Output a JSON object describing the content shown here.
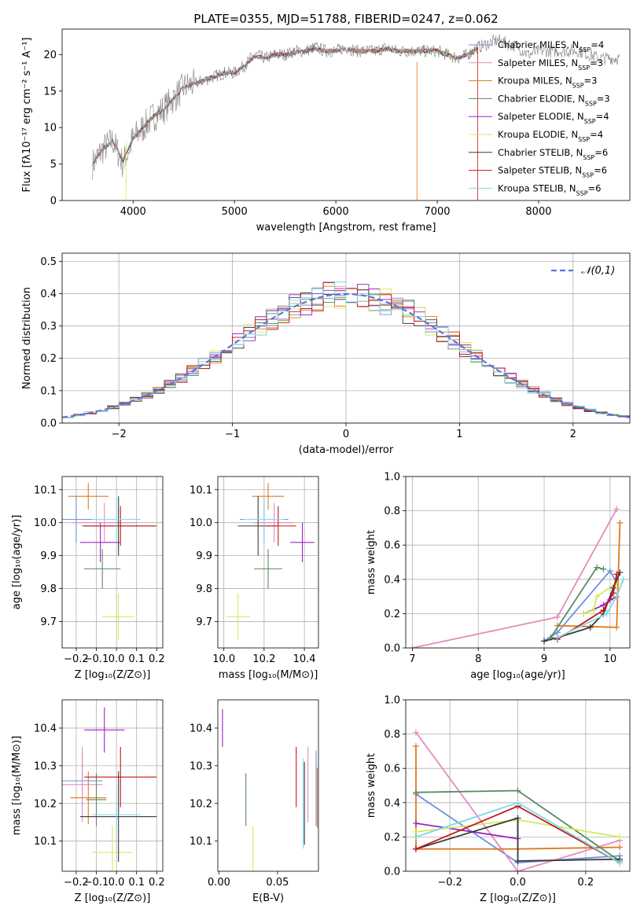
{
  "figure": {
    "title": "PLATE=0355, MJD=51788, FIBERID=0247, z=0.062"
  },
  "series_styles": [
    {
      "name": "Chabrier MILES",
      "color": "#6f8fe0"
    },
    {
      "name": "Salpeter MILES",
      "color": "#e58bbd"
    },
    {
      "name": "Kroupa MILES",
      "color": "#e07a20"
    },
    {
      "name": "Chabrier ELODIE",
      "color": "#5a8a62"
    },
    {
      "name": "Salpeter ELODIE",
      "color": "#a020c8"
    },
    {
      "name": "Kroupa ELODIE",
      "color": "#d4ea5a"
    },
    {
      "name": "Chabrier STELIB",
      "color": "#3a3a3a"
    },
    {
      "name": "Salpeter STELIB",
      "color": "#c01818"
    },
    {
      "name": "Kroupa STELIB",
      "color": "#7fd9e6"
    }
  ],
  "chart_data": [
    {
      "id": "spectrum",
      "type": "line",
      "xlabel": "wavelength [Angstrom, rest frame]",
      "ylabel": "Flux [fλ10⁻¹⁷ erg cm⁻² s⁻¹ A⁻¹]",
      "xlim": [
        3300,
        8900
      ],
      "ylim": [
        0,
        23.5
      ],
      "xticks": [
        4000,
        5000,
        6000,
        7000,
        8000
      ],
      "yticks": [
        0,
        5,
        10,
        15,
        20
      ],
      "grid": false,
      "legend_position": "right",
      "legend": [
        "Chabrier MILES, N_SSP=4",
        "Salpeter MILES, N_SSP=3",
        "Kroupa MILES, N_SSP=3",
        "Chabrier ELODIE, N_SSP=3",
        "Salpeter ELODIE, N_SSP=4",
        "Kroupa ELODIE, N_SSP=4",
        "Chabrier STELIB, N_SSP=6",
        "Salpeter STELIB, N_SSP=6",
        "Kroupa STELIB, N_SSP=6"
      ],
      "observed_spectrum": {
        "x": [
          3600,
          3700,
          3800,
          3900,
          4000,
          4100,
          4200,
          4300,
          4400,
          4500,
          4600,
          4700,
          4800,
          4900,
          5000,
          5100,
          5200,
          5300,
          5400,
          5500,
          5600,
          5700,
          5800,
          5900,
          6000,
          6100,
          6200,
          6300,
          6400,
          6500,
          6600,
          6700,
          6800,
          6900,
          7000,
          7100,
          7200,
          7300,
          7400,
          7500,
          7600,
          7700,
          7800,
          7900,
          8000,
          8100,
          8200,
          8300,
          8400,
          8500,
          8600,
          8700,
          8800
        ],
        "y": [
          5,
          7,
          8.2,
          5,
          8.5,
          10,
          11.5,
          12.5,
          14,
          15.5,
          16,
          16.5,
          17,
          17.5,
          17.5,
          18.5,
          20,
          19.5,
          20,
          20,
          20.5,
          20.5,
          21,
          20.5,
          20.5,
          21,
          20.5,
          20.5,
          20.5,
          21,
          20.5,
          20.5,
          20.5,
          20.5,
          20.5,
          20,
          19.5,
          20,
          21,
          21.5,
          22,
          21.5,
          21,
          20,
          20.5,
          20.5,
          20.5,
          20.5,
          20.5,
          20,
          19.5,
          19.5,
          19.5
        ]
      },
      "model_spectrum": {
        "x": [
          3600,
          3700,
          3800,
          3900,
          4000,
          4100,
          4200,
          4300,
          4400,
          4500,
          4600,
          4700,
          4800,
          4900,
          5000,
          5100,
          5200,
          5300,
          5400,
          5500,
          5600,
          5700,
          5800,
          5900,
          6000,
          6100,
          6200,
          6300,
          6400,
          6500,
          6600,
          6700,
          6800,
          6900,
          7000,
          7100,
          7200,
          7300,
          7400
        ],
        "y": [
          5,
          7,
          8.2,
          5.5,
          8.5,
          10,
          11.5,
          12.5,
          14,
          15.5,
          16,
          16.5,
          17,
          17.5,
          17.5,
          18.5,
          19.8,
          19.5,
          20,
          20,
          20.3,
          20.5,
          20.8,
          20.5,
          20.5,
          20.8,
          20.5,
          20.5,
          20.5,
          20.8,
          20.5,
          20.5,
          20.5,
          20.5,
          20.5,
          20,
          19.5,
          20,
          20.8
        ]
      }
    },
    {
      "id": "residual_histogram",
      "type": "histogram",
      "xlabel": "(data-model)/error",
      "ylabel": "Normed distribution",
      "xlim": [
        -2.5,
        2.5
      ],
      "ylim": [
        0,
        0.525
      ],
      "xticks": [
        -2,
        -1,
        0,
        1,
        2
      ],
      "yticks": [
        0.0,
        0.1,
        0.2,
        0.3,
        0.4,
        0.5
      ],
      "grid": true,
      "legend": [
        "𝒩(0,1)"
      ],
      "legend_position": "top-right",
      "bin_width": 0.1,
      "bins_start": -2.5,
      "reference_curve": "normal(0,1)"
    },
    {
      "id": "age_vs_Z",
      "type": "scatter-errorbar",
      "xlabel": "Z [log₁₀(Z/Z⊙)]",
      "ylabel": "age  [log₁₀(age/yr)]",
      "xlim": [
        -0.27,
        0.23
      ],
      "ylim": [
        9.62,
        10.14
      ],
      "xticks": [
        -0.2,
        -0.1,
        0.0,
        0.1,
        0.2
      ],
      "yticks": [
        9.7,
        9.8,
        9.9,
        10.0,
        10.1
      ],
      "grid": true,
      "points": [
        {
          "series": 0,
          "x": -0.2,
          "xerr": 0.08,
          "y": 10.01,
          "yerr": 0.07
        },
        {
          "series": 1,
          "x": -0.06,
          "xerr": 0.16,
          "y": 10.0,
          "yerr": 0.06
        },
        {
          "series": 2,
          "x": -0.14,
          "xerr": 0.1,
          "y": 10.08,
          "yerr": 0.04
        },
        {
          "series": 3,
          "x": -0.07,
          "xerr": 0.09,
          "y": 9.86,
          "yerr": 0.06
        },
        {
          "series": 4,
          "x": -0.08,
          "xerr": 0.1,
          "y": 9.94,
          "yerr": 0.06
        },
        {
          "series": 5,
          "x": 0.01,
          "xerr": 0.08,
          "y": 9.715,
          "yerr": 0.07
        },
        {
          "series": 6,
          "x": 0.01,
          "xerr": 0.18,
          "y": 9.99,
          "yerr": 0.09
        },
        {
          "series": 7,
          "x": 0.02,
          "xerr": 0.18,
          "y": 9.99,
          "yerr": 0.06
        },
        {
          "series": 8,
          "x": 0.0,
          "xerr": 0.12,
          "y": 10.01,
          "yerr": 0.07
        }
      ]
    },
    {
      "id": "age_vs_mass",
      "type": "scatter-errorbar",
      "xlabel": "mass [log₁₀(M/M⊙)]",
      "ylabel": "",
      "xlim": [
        9.97,
        10.47
      ],
      "ylim": [
        9.62,
        10.14
      ],
      "xticks": [
        10.0,
        10.2,
        10.4
      ],
      "yticks": [
        9.7,
        9.8,
        9.9,
        10.0,
        10.1
      ],
      "grid": true,
      "points": [
        {
          "series": 0,
          "x": 10.2,
          "xerr": 0.12,
          "y": 10.01,
          "yerr": 0.07
        },
        {
          "series": 1,
          "x": 10.25,
          "xerr": 0.1,
          "y": 10.0,
          "yerr": 0.06
        },
        {
          "series": 2,
          "x": 10.22,
          "xerr": 0.08,
          "y": 10.08,
          "yerr": 0.04
        },
        {
          "series": 3,
          "x": 10.22,
          "xerr": 0.07,
          "y": 9.86,
          "yerr": 0.06
        },
        {
          "series": 4,
          "x": 10.39,
          "xerr": 0.06,
          "y": 9.94,
          "yerr": 0.06
        },
        {
          "series": 5,
          "x": 10.07,
          "xerr": 0.06,
          "y": 9.715,
          "yerr": 0.07
        },
        {
          "series": 6,
          "x": 10.17,
          "xerr": 0.1,
          "y": 9.99,
          "yerr": 0.09
        },
        {
          "series": 7,
          "x": 10.27,
          "xerr": 0.09,
          "y": 9.99,
          "yerr": 0.06
        },
        {
          "series": 8,
          "x": 10.2,
          "xerr": 0.1,
          "y": 10.01,
          "yerr": 0.07
        }
      ]
    },
    {
      "id": "mass_weight_vs_age",
      "type": "line",
      "xlabel": "age  [log₁₀(age/yr)]",
      "ylabel": "mass weight",
      "xlim": [
        6.9,
        10.3
      ],
      "ylim": [
        0,
        1.0
      ],
      "xticks": [
        7,
        8,
        9,
        10
      ],
      "yticks": [
        0.0,
        0.2,
        0.4,
        0.6,
        0.8,
        1.0
      ],
      "grid": true,
      "series": [
        {
          "series": 0,
          "x": [
            9.0,
            9.2,
            10.0,
            10.1
          ],
          "y": [
            0.04,
            0.09,
            0.45,
            0.38
          ]
        },
        {
          "series": 1,
          "x": [
            7.0,
            9.2,
            10.1
          ],
          "y": [
            0.0,
            0.18,
            0.81
          ]
        },
        {
          "series": 2,
          "x": [
            9.2,
            10.1,
            10.15
          ],
          "y": [
            0.13,
            0.12,
            0.73
          ]
        },
        {
          "series": 3,
          "x": [
            9.1,
            9.8,
            9.9
          ],
          "y": [
            0.06,
            0.47,
            0.46
          ]
        },
        {
          "series": 4,
          "x": [
            9.6,
            9.9,
            10.0,
            10.1
          ],
          "y": [
            0.2,
            0.25,
            0.28,
            0.3
          ]
        },
        {
          "series": 5,
          "x": [
            9.6,
            9.75,
            9.8,
            10.1
          ],
          "y": [
            0.2,
            0.22,
            0.3,
            0.38
          ]
        },
        {
          "series": 6,
          "x": [
            9.0,
            9.2,
            9.7,
            9.9,
            10.05,
            10.15
          ],
          "y": [
            0.04,
            0.06,
            0.12,
            0.2,
            0.35,
            0.44
          ]
        },
        {
          "series": 7,
          "x": [
            9.2,
            9.9,
            10.05,
            10.1
          ],
          "y": [
            0.05,
            0.22,
            0.32,
            0.43
          ]
        },
        {
          "series": 8,
          "x": [
            9.2,
            9.95,
            10.1,
            10.2
          ],
          "y": [
            0.06,
            0.2,
            0.3,
            0.4
          ]
        }
      ]
    },
    {
      "id": "mass_vs_Z",
      "type": "scatter-errorbar",
      "xlabel": "Z [log₁₀(Z/Z⊙)]",
      "ylabel": "mass [log₁₀(M/M⊙)]",
      "xlim": [
        -0.27,
        0.23
      ],
      "ylim": [
        10.02,
        10.475
      ],
      "xticks": [
        -0.2,
        -0.1,
        0.0,
        0.1,
        0.2
      ],
      "yticks": [
        10.1,
        10.2,
        10.3,
        10.4
      ],
      "grid": true,
      "points": [
        {
          "series": 0,
          "x": -0.17,
          "xerr": 0.1,
          "y": 10.26,
          "yerr": 0.07
        },
        {
          "series": 1,
          "x": -0.17,
          "xerr": 0.1,
          "y": 10.25,
          "yerr": 0.1
        },
        {
          "series": 2,
          "x": -0.14,
          "xerr": 0.09,
          "y": 10.215,
          "yerr": 0.07
        },
        {
          "series": 3,
          "x": -0.1,
          "xerr": 0.05,
          "y": 10.21,
          "yerr": 0.07
        },
        {
          "series": 4,
          "x": -0.06,
          "xerr": 0.1,
          "y": 10.395,
          "yerr": 0.06
        },
        {
          "series": 5,
          "x": -0.02,
          "xerr": 0.1,
          "y": 10.07,
          "yerr": 0.07
        },
        {
          "series": 6,
          "x": 0.01,
          "xerr": 0.19,
          "y": 10.165,
          "yerr": 0.12
        },
        {
          "series": 7,
          "x": 0.02,
          "xerr": 0.18,
          "y": 10.27,
          "yerr": 0.08
        },
        {
          "series": 8,
          "x": 0.0,
          "xerr": 0.12,
          "y": 10.17,
          "yerr": 0.06
        }
      ]
    },
    {
      "id": "mass_vs_ebv",
      "type": "errorbar",
      "xlabel": "E(B-V)",
      "ylabel": "",
      "xlim": [
        -0.001,
        0.085
      ],
      "ylim": [
        10.02,
        10.475
      ],
      "xticks": [
        0.0,
        0.05
      ],
      "yticks": [
        10.1,
        10.2,
        10.3,
        10.4
      ],
      "grid": false,
      "points": [
        {
          "series": 0,
          "x": 0.083,
          "y": 10.24,
          "yerr": 0.1
        },
        {
          "series": 1,
          "x": 0.076,
          "y": 10.25,
          "yerr": 0.1
        },
        {
          "series": 2,
          "x": 0.084,
          "y": 10.215,
          "yerr": 0.08
        },
        {
          "series": 3,
          "x": 0.023,
          "y": 10.21,
          "yerr": 0.07
        },
        {
          "series": 4,
          "x": 0.003,
          "y": 10.4,
          "yerr": 0.05
        },
        {
          "series": 5,
          "x": 0.029,
          "y": 10.08,
          "yerr": 0.06
        },
        {
          "series": 6,
          "x": 0.073,
          "y": 10.2,
          "yerr": 0.11
        },
        {
          "series": 7,
          "x": 0.066,
          "y": 10.27,
          "yerr": 0.08
        },
        {
          "series": 8,
          "x": 0.072,
          "y": 10.2,
          "yerr": 0.12
        }
      ]
    },
    {
      "id": "mass_weight_vs_Z",
      "type": "line",
      "xlabel": "Z [log₁₀(Z/Z⊙)]",
      "ylabel": "mass weight",
      "xlim": [
        -0.33,
        0.33
      ],
      "ylim": [
        0,
        1.0
      ],
      "xticks": [
        -0.2,
        0.0,
        0.2
      ],
      "yticks": [
        0.0,
        0.2,
        0.4,
        0.6,
        0.8,
        1.0
      ],
      "grid": true,
      "series": [
        {
          "series": 0,
          "x": [
            -0.3,
            0.0,
            0.3
          ],
          "y": [
            0.45,
            0.05,
            0.09
          ]
        },
        {
          "series": 1,
          "x": [
            -0.3,
            0.0,
            0.3
          ],
          "y": [
            0.81,
            0.0,
            0.18
          ]
        },
        {
          "series": 2,
          "x": [
            -0.3,
            -0.3,
            0.0,
            0.3
          ],
          "y": [
            0.73,
            0.13,
            0.13,
            0.14
          ]
        },
        {
          "series": 3,
          "x": [
            -0.3,
            0.0,
            0.3
          ],
          "y": [
            0.46,
            0.47,
            0.06
          ]
        },
        {
          "series": 4,
          "x": [
            -0.3,
            0.0,
            0.0
          ],
          "y": [
            0.28,
            0.19,
            0.3
          ]
        },
        {
          "series": 5,
          "x": [
            -0.3,
            0.0,
            0.3
          ],
          "y": [
            0.23,
            0.3,
            0.2
          ]
        },
        {
          "series": 6,
          "x": [
            -0.3,
            0.0,
            0.0,
            0.3
          ],
          "y": [
            0.13,
            0.31,
            0.06,
            0.07
          ]
        },
        {
          "series": 7,
          "x": [
            -0.3,
            0.0,
            0.3
          ],
          "y": [
            0.13,
            0.38,
            0.05
          ]
        },
        {
          "series": 8,
          "x": [
            -0.3,
            0.0,
            0.3
          ],
          "y": [
            0.2,
            0.4,
            0.05
          ]
        }
      ]
    }
  ]
}
